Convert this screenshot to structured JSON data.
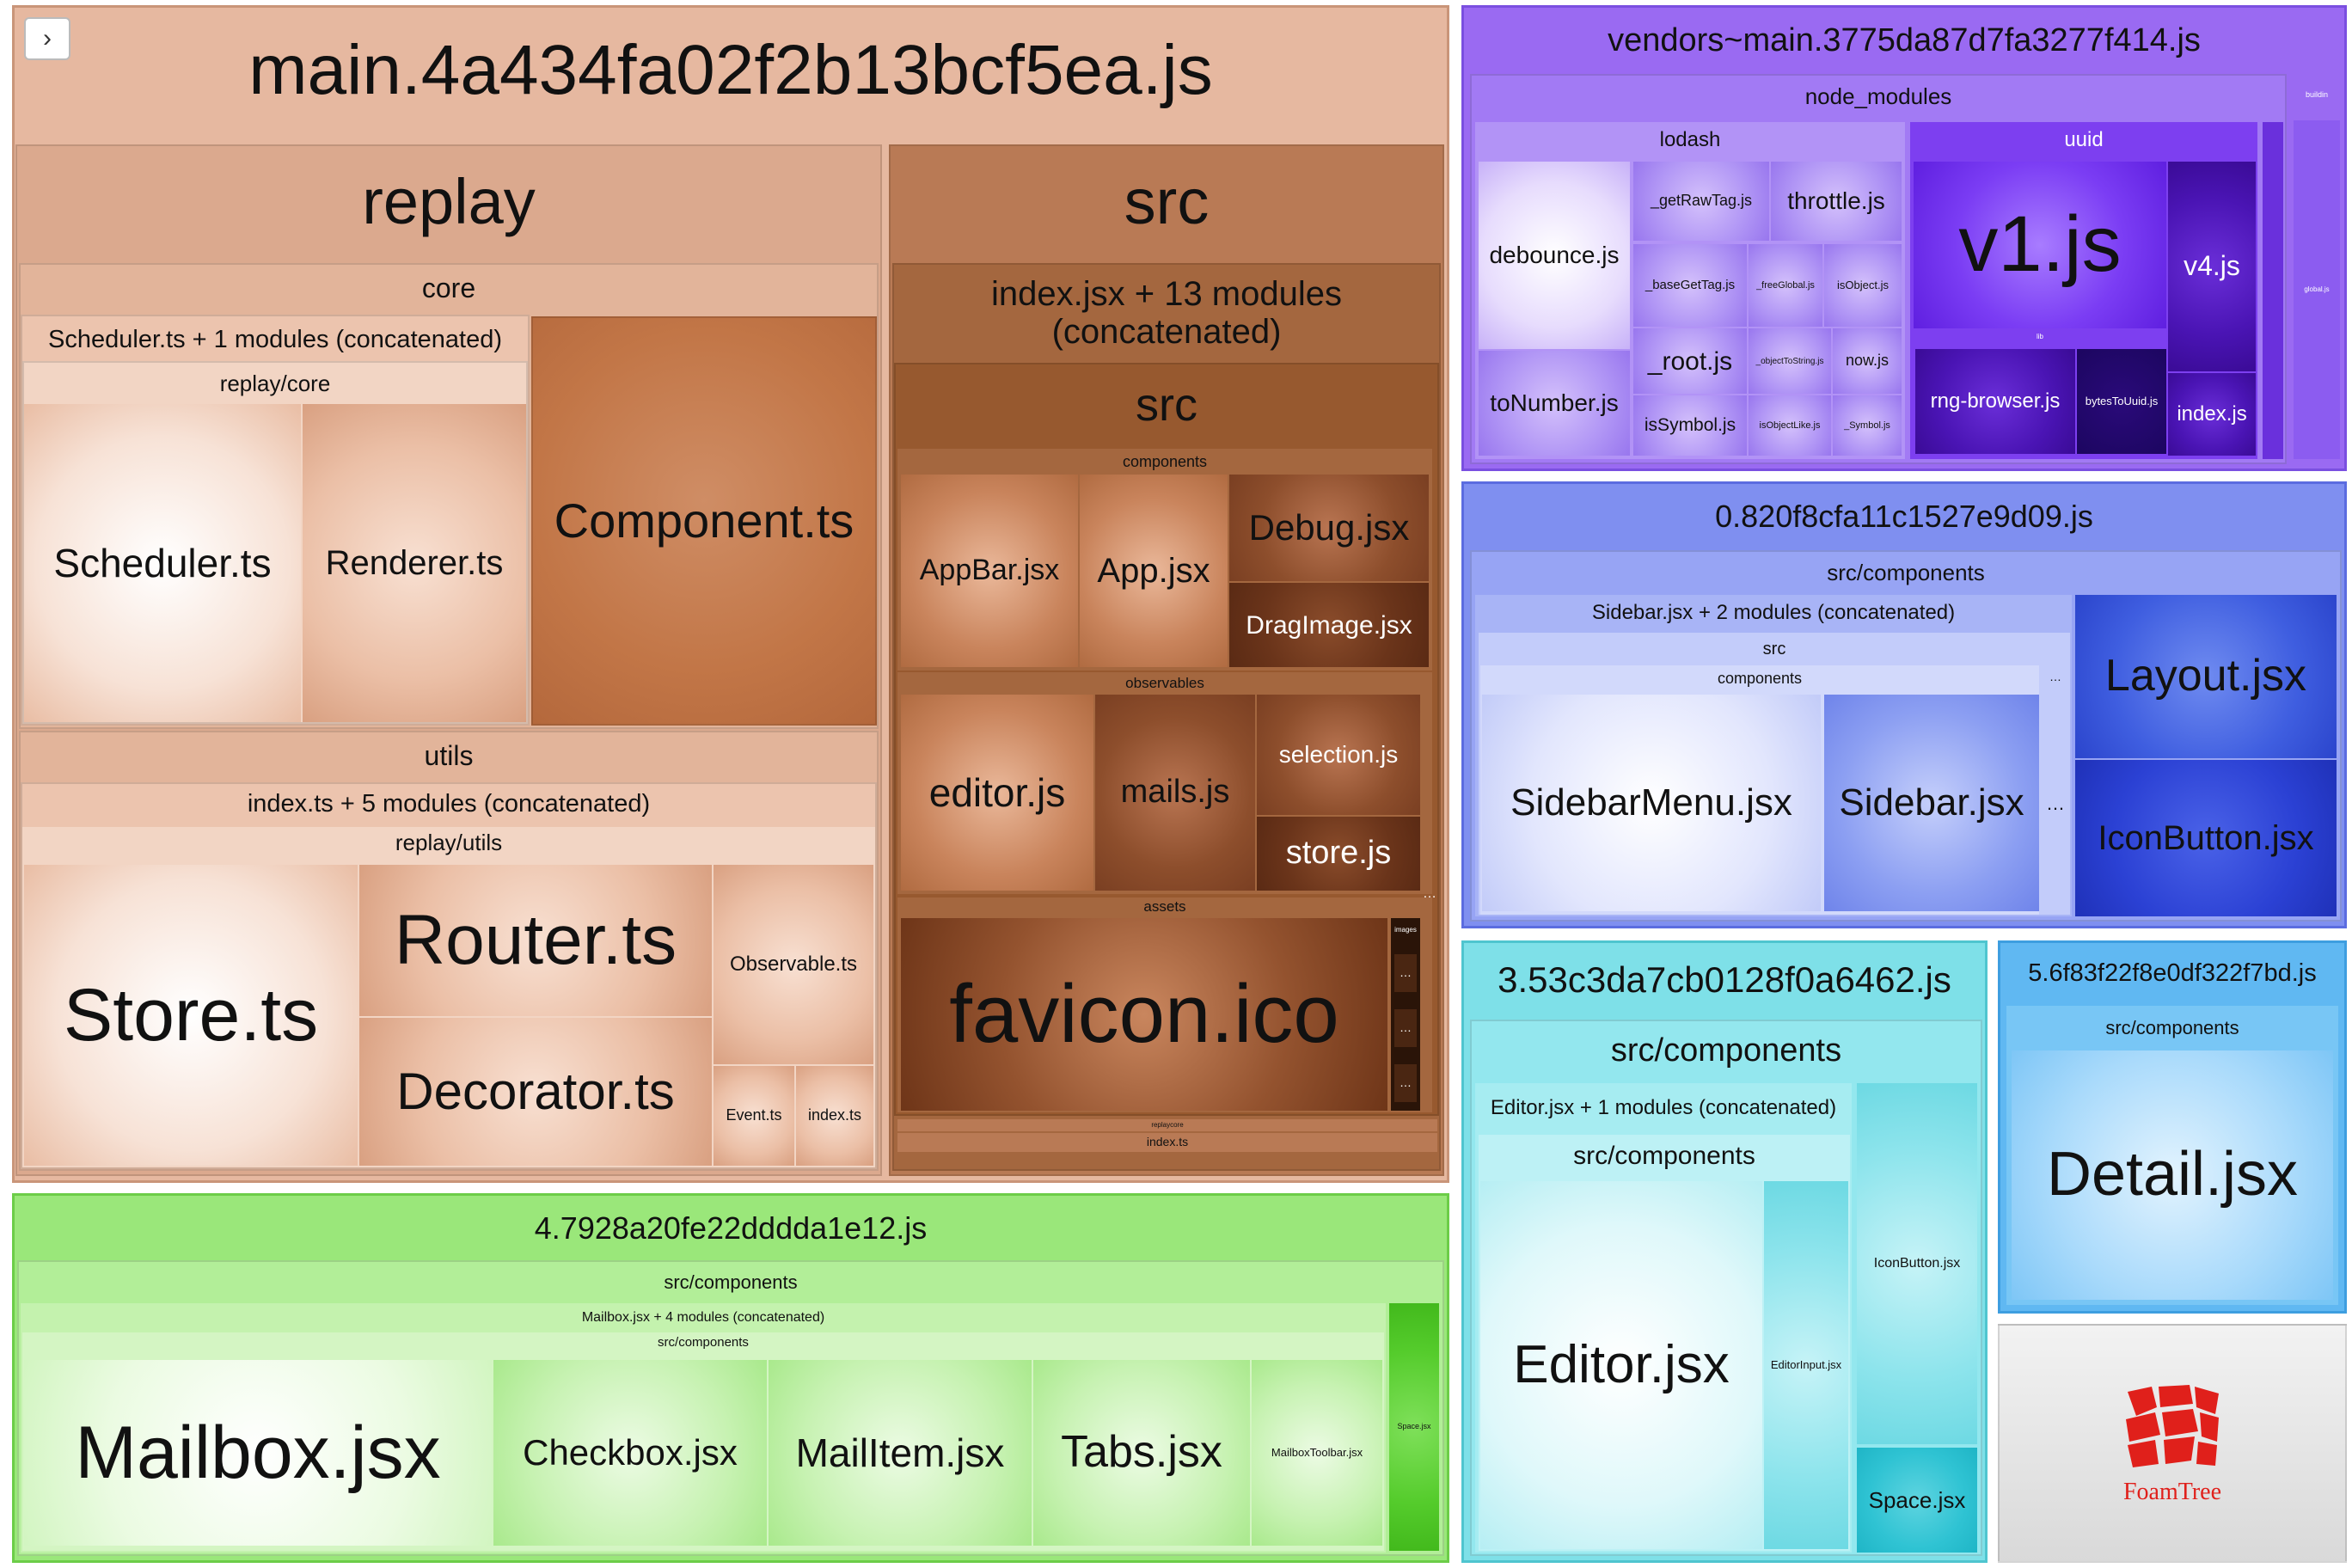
{
  "ui": {
    "expander_icon": "chevron-right-icon",
    "expander_glyph": "›",
    "ellipsis": "…"
  },
  "main": {
    "title": "main.4a434fa02f2b13bcf5ea.js",
    "replay": {
      "title": "replay",
      "core": {
        "title": "core",
        "concat": "Scheduler.ts + 1 modules (concatenated)",
        "subpath": "replay/core",
        "scheduler": "Scheduler.ts",
        "renderer": "Renderer.ts",
        "component": "Component.ts"
      },
      "utils": {
        "title": "utils",
        "concat": "index.ts + 5 modules (concatenated)",
        "subpath": "replay/utils",
        "store": "Store.ts",
        "router": "Router.ts",
        "decorator": "Decorator.ts",
        "observable": "Observable.ts",
        "event": "Event.ts",
        "index": "index.ts"
      }
    },
    "src": {
      "title": "src",
      "concat": "index.jsx + 13 modules (concatenated)",
      "inner": "src",
      "components": {
        "title": "components",
        "appbar": "AppBar.jsx",
        "app": "App.jsx",
        "debug": "Debug.jsx",
        "dragimage": "DragImage.jsx"
      },
      "observables": {
        "title": "observables",
        "editor": "editor.js",
        "mails": "mails.js",
        "selection": "selection.js",
        "store": "store.js"
      },
      "assets": {
        "title": "assets",
        "favicon": "favicon.ico",
        "images": "images"
      },
      "replaycore": "replaycore",
      "index": "index.ts"
    }
  },
  "vendors": {
    "title": "vendors~main.3775da87d7fa3277f414.js",
    "node_modules": "node_modules",
    "builtin": "buildin",
    "global": "global.js",
    "lodash": {
      "title": "lodash",
      "debounce": "debounce.js",
      "toNumber": "toNumber.js",
      "getRawTag": "_getRawTag.js",
      "throttle": "throttle.js",
      "baseGetTag": "_baseGetTag.js",
      "freeGlobal": "_freeGlobal.js",
      "isObject": "isObject.js",
      "root": "_root.js",
      "objectToString": "_objectToString.js",
      "now": "now.js",
      "isSymbol": "isSymbol.js",
      "isObjectLike": "isObjectLike.js",
      "Symbol": "_Symbol.js"
    },
    "uuid": {
      "title": "uuid",
      "v1": "v1.js",
      "v4": "v4.js",
      "lib": "lib",
      "rngBrowser": "rng-browser.js",
      "bytesToUuid": "bytesToUuid.js",
      "index": "index.js"
    }
  },
  "chunk0": {
    "title": "0.820f8cfa11c1527e9d09.js",
    "group": "src/components",
    "concat": "Sidebar.jsx + 2 modules (concatenated)",
    "src": "src",
    "components": "components",
    "sidebarMenu": "SidebarMenu.jsx",
    "sidebar": "Sidebar.jsx",
    "layout": "Layout.jsx",
    "iconButton": "IconButton.jsx"
  },
  "chunk3": {
    "title": "3.53c3da7cb0128f0a6462.js",
    "group": "src/components",
    "concat": "Editor.jsx + 1 modules (concatenated)",
    "inner": "src/components",
    "editor": "Editor.jsx",
    "editorInput": "EditorInput.jsx",
    "iconButton": "IconButton.jsx",
    "space": "Space.jsx"
  },
  "chunk5": {
    "title": "5.6f83f22f8e0df322f7bd.js",
    "group": "src/components",
    "detail": "Detail.jsx"
  },
  "chunk4": {
    "title": "4.7928a20fe22dddda1e12.js",
    "group": "src/components",
    "concat": "Mailbox.jsx + 4 modules (concatenated)",
    "inner": "src/components",
    "mailbox": "Mailbox.jsx",
    "checkbox": "Checkbox.jsx",
    "mailItem": "MailItem.jsx",
    "tabs": "Tabs.jsx",
    "toolbar": "MailboxToolbar.jsx",
    "space": "Space.jsx"
  },
  "foamtree": {
    "label": "FoamTree",
    "icon": "foamtree-logo-icon"
  },
  "colors": {
    "main": "#e6b8a0",
    "src": "#b97a55",
    "vendors": "#9a6af2",
    "uuid": "#7d3ff0",
    "chunk0": "#7f8ff0",
    "chunk3": "#7ee0e8",
    "chunk5": "#60b8f2",
    "chunk4": "#9ae77a",
    "foamtree_red": "#e0201b"
  }
}
